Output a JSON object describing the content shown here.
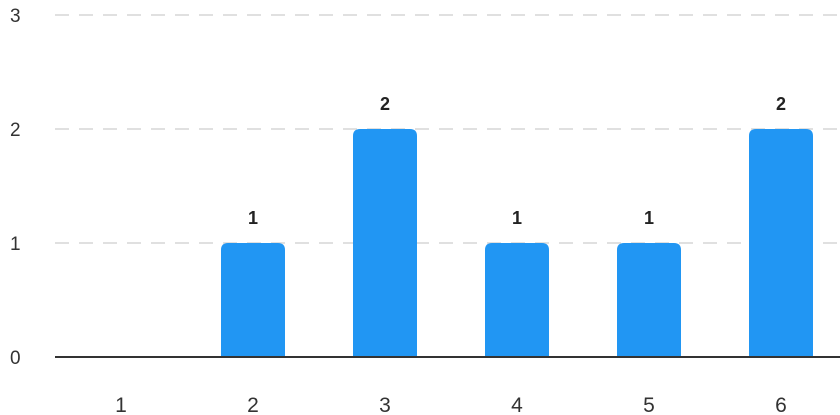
{
  "chart_data": {
    "type": "bar",
    "categories": [
      "1",
      "2",
      "3",
      "4",
      "5",
      "6"
    ],
    "values": [
      0,
      1,
      2,
      1,
      1,
      2
    ],
    "data_labels": [
      "",
      "1",
      "2",
      "1",
      "1",
      "2"
    ],
    "y_ticks": [
      "0",
      "1",
      "2",
      "3"
    ],
    "ylim": [
      0,
      3
    ],
    "grid": true,
    "title": "",
    "xlabel": "",
    "ylabel": ""
  },
  "colors": {
    "bar": "#2196f3",
    "grid": "#e0e0e0",
    "axis": "#333333"
  }
}
